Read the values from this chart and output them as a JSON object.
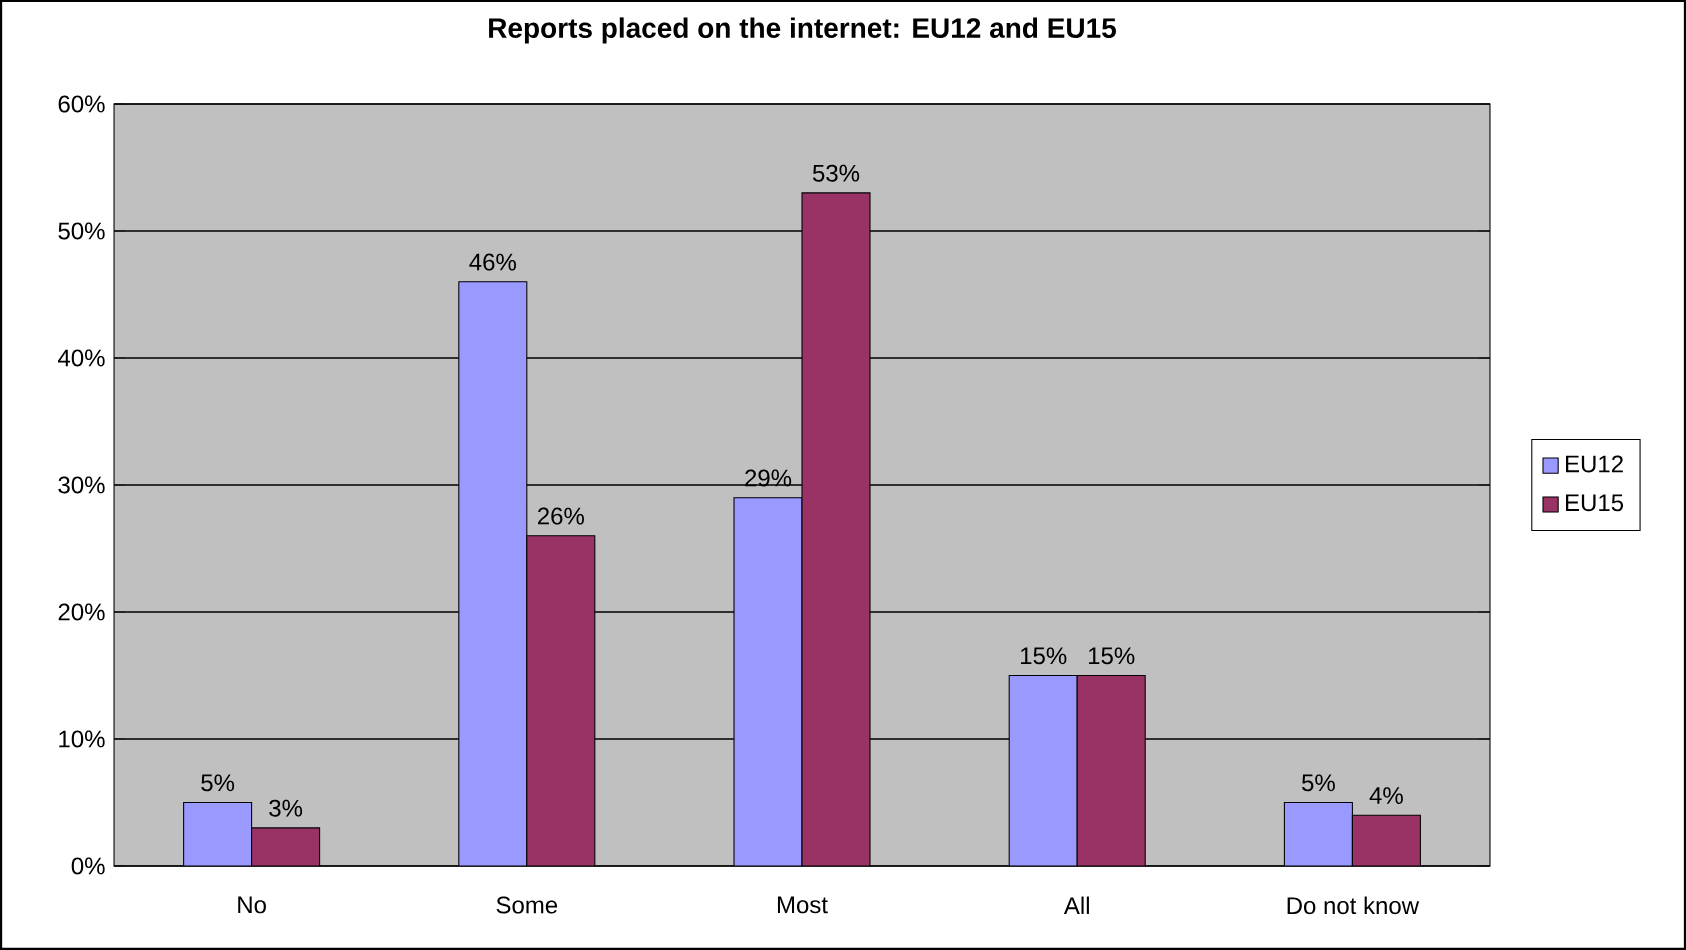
{
  "chart_data": {
    "type": "bar",
    "title": "Reports placed on the internet: EU12 and EU15",
    "categories": [
      "No",
      "Some",
      "Most",
      "All",
      "Do not know"
    ],
    "series": [
      {
        "name": "EU12",
        "color": "#9999ff",
        "values": [
          5,
          46,
          29,
          15,
          5
        ],
        "value_labels": [
          "5%",
          "46%",
          "29%",
          "15%",
          "5%"
        ]
      },
      {
        "name": "EU15",
        "color": "#993366",
        "values": [
          3,
          26,
          53,
          15,
          4
        ],
        "value_labels": [
          "3%",
          "26%",
          "53%",
          "15%",
          "4%"
        ]
      }
    ],
    "ylim": [
      0,
      60
    ],
    "yticks": [
      {
        "value": 0,
        "label": "0%"
      },
      {
        "value": 10,
        "label": "10%"
      },
      {
        "value": 20,
        "label": "20%"
      },
      {
        "value": 30,
        "label": "30%"
      },
      {
        "value": 40,
        "label": "40%"
      },
      {
        "value": 50,
        "label": "50%"
      },
      {
        "value": 60,
        "label": "60%"
      }
    ],
    "grid": "y",
    "legend": "right"
  }
}
